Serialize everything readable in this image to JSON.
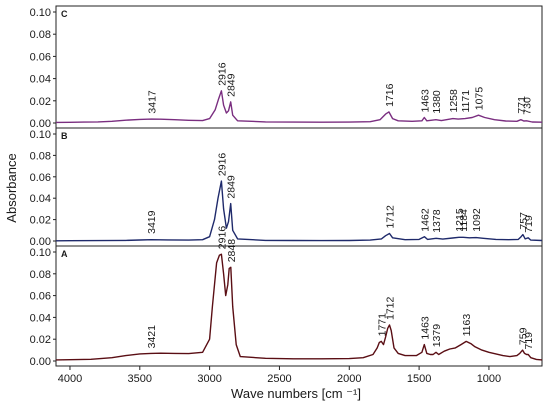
{
  "chart_data": {
    "type": "line",
    "xlabel": "Wave numbers [cm ⁻¹]",
    "ylabel": "Absorbance",
    "x_reversed": true,
    "xlim": [
      4100,
      620
    ],
    "x_ticks": [
      "4000",
      "3500",
      "3000",
      "2500",
      "2000",
      "1500",
      "1000"
    ],
    "x_tick_values": [
      4000,
      3500,
      3000,
      2500,
      2000,
      1500,
      1000
    ],
    "grid": false,
    "legend": "none",
    "panels": [
      {
        "label": "C",
        "color": "#7a2e80",
        "ylim": [
          0,
          0.1
        ],
        "y_ticks": [
          "0.00",
          "0.02",
          "0.04",
          "0.06",
          "0.08",
          "0.10"
        ],
        "y_tick_values": [
          0,
          0.02,
          0.04,
          0.06,
          0.08,
          0.1
        ],
        "peak_labels": [
          {
            "x": 3417,
            "text": "3417",
            "y": 0.004
          },
          {
            "x": 2916,
            "text": "2916",
            "y": 0.029
          },
          {
            "x": 2849,
            "text": "2849",
            "y": 0.019
          },
          {
            "x": 1716,
            "text": "1716",
            "y": 0.01
          },
          {
            "x": 1463,
            "text": "1463",
            "y": 0.005
          },
          {
            "x": 1380,
            "text": "1380",
            "y": 0.004
          },
          {
            "x": 1258,
            "text": "1258",
            "y": 0.005
          },
          {
            "x": 1171,
            "text": "1171",
            "y": 0.005
          },
          {
            "x": 1075,
            "text": "1075",
            "y": 0.007
          },
          {
            "x": 771,
            "text": "771",
            "y": 0.004
          },
          {
            "x": 730,
            "text": "730",
            "y": 0.003
          }
        ],
        "points": [
          [
            4100,
            0.0005
          ],
          [
            4000,
            0.0006
          ],
          [
            3900,
            0.0008
          ],
          [
            3800,
            0.001
          ],
          [
            3700,
            0.0015
          ],
          [
            3600,
            0.0025
          ],
          [
            3500,
            0.0032
          ],
          [
            3417,
            0.0035
          ],
          [
            3350,
            0.0034
          ],
          [
            3250,
            0.003
          ],
          [
            3150,
            0.0024
          ],
          [
            3050,
            0.0022
          ],
          [
            3000,
            0.004
          ],
          [
            2960,
            0.012
          ],
          [
            2935,
            0.022
          ],
          [
            2916,
            0.029
          ],
          [
            2900,
            0.016
          ],
          [
            2880,
            0.009
          ],
          [
            2865,
            0.011
          ],
          [
            2849,
            0.019
          ],
          [
            2835,
            0.007
          ],
          [
            2800,
            0.002
          ],
          [
            2600,
            0.001
          ],
          [
            2400,
            0.0008
          ],
          [
            2200,
            0.0007
          ],
          [
            2000,
            0.0008
          ],
          [
            1850,
            0.0012
          ],
          [
            1780,
            0.003
          ],
          [
            1740,
            0.008
          ],
          [
            1716,
            0.01
          ],
          [
            1690,
            0.004
          ],
          [
            1650,
            0.002
          ],
          [
            1550,
            0.0015
          ],
          [
            1480,
            0.002
          ],
          [
            1463,
            0.005
          ],
          [
            1445,
            0.002
          ],
          [
            1380,
            0.003
          ],
          [
            1340,
            0.0022
          ],
          [
            1258,
            0.004
          ],
          [
            1220,
            0.0035
          ],
          [
            1171,
            0.004
          ],
          [
            1120,
            0.005
          ],
          [
            1075,
            0.007
          ],
          [
            1030,
            0.005
          ],
          [
            960,
            0.003
          ],
          [
            880,
            0.0018
          ],
          [
            800,
            0.0015
          ],
          [
            771,
            0.003
          ],
          [
            750,
            0.0018
          ],
          [
            730,
            0.002
          ],
          [
            690,
            0.0009
          ],
          [
            620,
            0.0007
          ]
        ]
      },
      {
        "label": "B",
        "color": "#1f2a6b",
        "ylim": [
          0,
          0.1
        ],
        "y_ticks": [
          "0.00",
          "0.02",
          "0.04",
          "0.06",
          "0.08",
          "0.10"
        ],
        "y_tick_values": [
          0,
          0.02,
          0.04,
          0.06,
          0.08,
          0.1
        ],
        "peak_labels": [
          {
            "x": 3419,
            "text": "3419",
            "y": 0.002
          },
          {
            "x": 2916,
            "text": "2916",
            "y": 0.056
          },
          {
            "x": 2849,
            "text": "2849",
            "y": 0.035
          },
          {
            "x": 1712,
            "text": "1712",
            "y": 0.007
          },
          {
            "x": 1462,
            "text": "1462",
            "y": 0.004
          },
          {
            "x": 1378,
            "text": "1378",
            "y": 0.003
          },
          {
            "x": 1215,
            "text": "1215",
            "y": 0.004
          },
          {
            "x": 1184,
            "text": "1184",
            "y": 0.004
          },
          {
            "x": 1092,
            "text": "1092",
            "y": 0.004
          },
          {
            "x": 757,
            "text": "757",
            "y": 0.006
          },
          {
            "x": 719,
            "text": "719",
            "y": 0.003
          }
        ],
        "points": [
          [
            4100,
            0.0002
          ],
          [
            4000,
            0.0003
          ],
          [
            3800,
            0.0004
          ],
          [
            3600,
            0.0006
          ],
          [
            3500,
            0.0009
          ],
          [
            3419,
            0.0012
          ],
          [
            3300,
            0.001
          ],
          [
            3150,
            0.0008
          ],
          [
            3050,
            0.0012
          ],
          [
            3000,
            0.004
          ],
          [
            2965,
            0.02
          ],
          [
            2940,
            0.04
          ],
          [
            2916,
            0.056
          ],
          [
            2900,
            0.03
          ],
          [
            2880,
            0.012
          ],
          [
            2865,
            0.018
          ],
          [
            2849,
            0.035
          ],
          [
            2835,
            0.01
          ],
          [
            2800,
            0.002
          ],
          [
            2600,
            0.0006
          ],
          [
            2400,
            0.0005
          ],
          [
            2200,
            0.0004
          ],
          [
            2000,
            0.0005
          ],
          [
            1850,
            0.0008
          ],
          [
            1770,
            0.002
          ],
          [
            1740,
            0.005
          ],
          [
            1712,
            0.007
          ],
          [
            1690,
            0.003
          ],
          [
            1600,
            0.0012
          ],
          [
            1500,
            0.0015
          ],
          [
            1462,
            0.004
          ],
          [
            1440,
            0.0015
          ],
          [
            1378,
            0.0025
          ],
          [
            1330,
            0.0018
          ],
          [
            1260,
            0.0028
          ],
          [
            1215,
            0.0035
          ],
          [
            1184,
            0.0035
          ],
          [
            1140,
            0.003
          ],
          [
            1092,
            0.0032
          ],
          [
            1040,
            0.0025
          ],
          [
            950,
            0.0015
          ],
          [
            860,
            0.0012
          ],
          [
            790,
            0.0015
          ],
          [
            770,
            0.004
          ],
          [
            757,
            0.006
          ],
          [
            740,
            0.002
          ],
          [
            719,
            0.003
          ],
          [
            700,
            0.0008
          ],
          [
            620,
            0.0005
          ]
        ]
      },
      {
        "label": "A",
        "color": "#5a0e14",
        "ylim": [
          0,
          0.1
        ],
        "y_ticks": [
          "0.00",
          "0.02",
          "0.04",
          "0.06",
          "0.08",
          "0.10"
        ],
        "y_tick_values": [
          0,
          0.02,
          0.04,
          0.06,
          0.08,
          0.1
        ],
        "peak_labels": [
          {
            "x": 3421,
            "text": "3421",
            "y": 0.007
          },
          {
            "x": 2916,
            "text": "2916",
            "y": 0.098
          },
          {
            "x": 2848,
            "text": "2848",
            "y": 0.086
          },
          {
            "x": 1771,
            "text": "1771",
            "y": 0.018
          },
          {
            "x": 1712,
            "text": "1712",
            "y": 0.033
          },
          {
            "x": 1463,
            "text": "1463",
            "y": 0.015
          },
          {
            "x": 1379,
            "text": "1379",
            "y": 0.008
          },
          {
            "x": 1163,
            "text": "1163",
            "y": 0.018
          },
          {
            "x": 759,
            "text": "759",
            "y": 0.01
          },
          {
            "x": 719,
            "text": "719",
            "y": 0.006
          }
        ],
        "points": [
          [
            4100,
            0.001
          ],
          [
            4000,
            0.0012
          ],
          [
            3850,
            0.0016
          ],
          [
            3700,
            0.003
          ],
          [
            3600,
            0.005
          ],
          [
            3500,
            0.0065
          ],
          [
            3421,
            0.007
          ],
          [
            3350,
            0.0072
          ],
          [
            3250,
            0.007
          ],
          [
            3150,
            0.0068
          ],
          [
            3050,
            0.008
          ],
          [
            3000,
            0.02
          ],
          [
            2980,
            0.05
          ],
          [
            2950,
            0.09
          ],
          [
            2930,
            0.097
          ],
          [
            2916,
            0.098
          ],
          [
            2900,
            0.08
          ],
          [
            2885,
            0.06
          ],
          [
            2870,
            0.07
          ],
          [
            2860,
            0.085
          ],
          [
            2848,
            0.086
          ],
          [
            2835,
            0.05
          ],
          [
            2810,
            0.015
          ],
          [
            2780,
            0.004
          ],
          [
            2600,
            0.0025
          ],
          [
            2400,
            0.002
          ],
          [
            2200,
            0.002
          ],
          [
            2000,
            0.0022
          ],
          [
            1900,
            0.003
          ],
          [
            1830,
            0.006
          ],
          [
            1800,
            0.012
          ],
          [
            1785,
            0.017
          ],
          [
            1771,
            0.018
          ],
          [
            1755,
            0.015
          ],
          [
            1740,
            0.022
          ],
          [
            1725,
            0.03
          ],
          [
            1712,
            0.033
          ],
          [
            1700,
            0.028
          ],
          [
            1680,
            0.012
          ],
          [
            1650,
            0.007
          ],
          [
            1600,
            0.005
          ],
          [
            1520,
            0.005
          ],
          [
            1480,
            0.008
          ],
          [
            1463,
            0.015
          ],
          [
            1445,
            0.007
          ],
          [
            1420,
            0.006
          ],
          [
            1400,
            0.006
          ],
          [
            1379,
            0.008
          ],
          [
            1360,
            0.006
          ],
          [
            1320,
            0.009
          ],
          [
            1280,
            0.011
          ],
          [
            1240,
            0.012
          ],
          [
            1200,
            0.015
          ],
          [
            1163,
            0.018
          ],
          [
            1130,
            0.016
          ],
          [
            1100,
            0.013
          ],
          [
            1050,
            0.01
          ],
          [
            1000,
            0.008
          ],
          [
            950,
            0.0065
          ],
          [
            900,
            0.005
          ],
          [
            850,
            0.004
          ],
          [
            800,
            0.005
          ],
          [
            780,
            0.007
          ],
          [
            759,
            0.01
          ],
          [
            745,
            0.007
          ],
          [
            730,
            0.006
          ],
          [
            719,
            0.006
          ],
          [
            700,
            0.003
          ],
          [
            660,
            0.0015
          ],
          [
            620,
            0.001
          ]
        ]
      }
    ]
  }
}
